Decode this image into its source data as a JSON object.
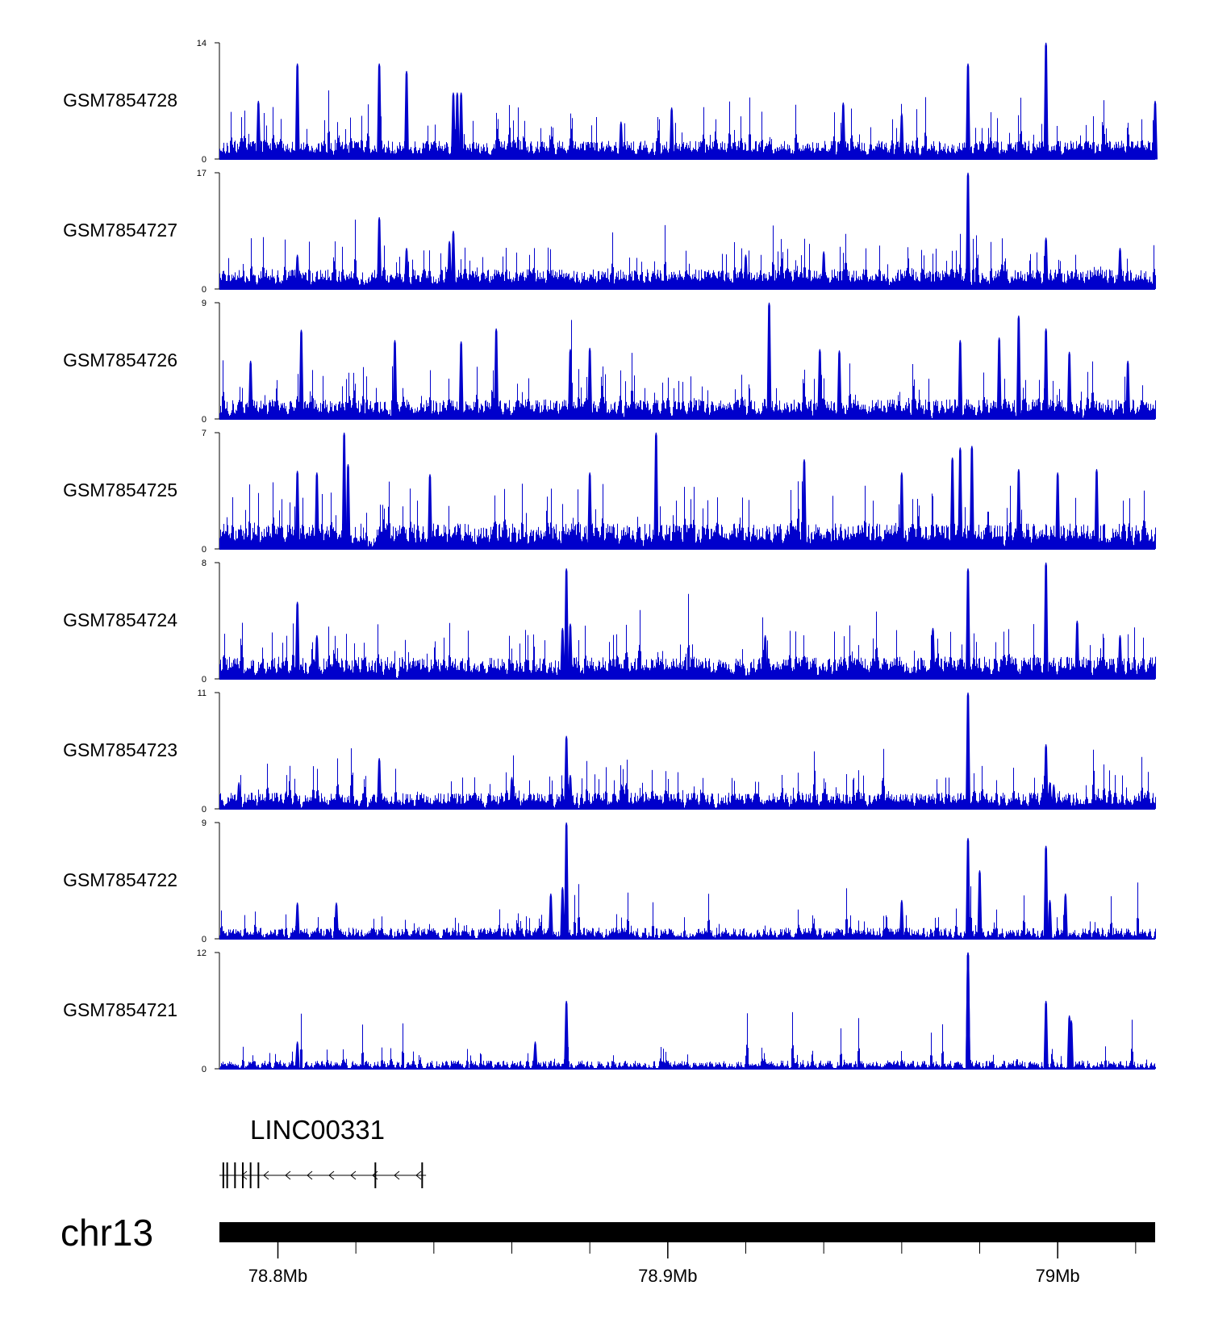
{
  "chart_data": {
    "type": "area",
    "title": "",
    "chromosome": "chr13",
    "x_range_mb": [
      78.785,
      79.025
    ],
    "x_unit": "Mb",
    "xticks": [
      {
        "value": 78.8,
        "label": "78.8Mb"
      },
      {
        "value": 78.9,
        "label": "78.9Mb"
      },
      {
        "value": 79.0,
        "label": "79Mb"
      }
    ],
    "minor_tick_step_mb": 0.02,
    "color": "#0000CC",
    "tracks": [
      {
        "name": "GSM7854728",
        "ymin": "0",
        "ymax": "14",
        "ymax_value": 14,
        "baseline": 1.3,
        "density": 1.0,
        "peaks": [
          [
            78.805,
            11.5
          ],
          [
            78.826,
            11.5
          ],
          [
            78.833,
            10.6
          ],
          [
            78.845,
            8.0
          ],
          [
            78.846,
            8.0
          ],
          [
            78.847,
            8.0
          ],
          [
            78.795,
            7.0
          ],
          [
            78.977,
            11.5
          ],
          [
            78.997,
            14.0
          ],
          [
            78.901,
            6.2
          ],
          [
            78.945,
            6.8
          ],
          [
            79.025,
            7.0
          ],
          [
            78.888,
            4.5
          ],
          [
            78.96,
            5.5
          ]
        ]
      },
      {
        "name": "GSM7854727",
        "ymin": "0",
        "ymax": "17",
        "ymax_value": 17,
        "baseline": 1.7,
        "density": 1.0,
        "peaks": [
          [
            78.826,
            10.5
          ],
          [
            78.833,
            6.0
          ],
          [
            78.845,
            8.5
          ],
          [
            78.844,
            7.0
          ],
          [
            78.977,
            17.0
          ],
          [
            78.997,
            7.5
          ],
          [
            79.016,
            6.0
          ],
          [
            78.805,
            5.0
          ],
          [
            78.94,
            5.5
          ],
          [
            78.92,
            5.0
          ]
        ]
      },
      {
        "name": "GSM7854726",
        "ymin": "0",
        "ymax": "9",
        "ymax_value": 9,
        "baseline": 0.9,
        "density": 0.9,
        "peaks": [
          [
            78.806,
            6.9
          ],
          [
            78.83,
            6.1
          ],
          [
            78.847,
            6.0
          ],
          [
            78.856,
            7.0
          ],
          [
            78.875,
            5.4
          ],
          [
            78.88,
            5.5
          ],
          [
            78.926,
            9.0
          ],
          [
            78.939,
            5.4
          ],
          [
            78.944,
            5.3
          ],
          [
            78.985,
            6.3
          ],
          [
            78.99,
            8.0
          ],
          [
            78.997,
            7.0
          ],
          [
            78.975,
            6.1
          ],
          [
            79.003,
            5.2
          ],
          [
            79.018,
            4.5
          ],
          [
            78.793,
            4.5
          ]
        ]
      },
      {
        "name": "GSM7854725",
        "ymin": "0",
        "ymax": "7",
        "ymax_value": 7,
        "baseline": 0.9,
        "density": 0.9,
        "peaks": [
          [
            78.817,
            7.0
          ],
          [
            78.805,
            4.7
          ],
          [
            78.81,
            4.6
          ],
          [
            78.818,
            5.1
          ],
          [
            78.839,
            4.5
          ],
          [
            78.88,
            4.6
          ],
          [
            78.897,
            7.0
          ],
          [
            78.935,
            5.4
          ],
          [
            78.96,
            4.6
          ],
          [
            78.975,
            6.1
          ],
          [
            78.978,
            6.2
          ],
          [
            78.973,
            5.5
          ],
          [
            78.99,
            4.8
          ],
          [
            79.0,
            4.6
          ],
          [
            79.01,
            4.8
          ]
        ]
      },
      {
        "name": "GSM7854724",
        "ymin": "0",
        "ymax": "8",
        "ymax_value": 8,
        "baseline": 0.9,
        "density": 0.9,
        "peaks": [
          [
            78.805,
            5.3
          ],
          [
            78.874,
            7.6
          ],
          [
            78.873,
            3.5
          ],
          [
            78.875,
            3.8
          ],
          [
            78.977,
            7.6
          ],
          [
            78.997,
            8.0
          ],
          [
            79.005,
            4.0
          ],
          [
            78.968,
            3.5
          ],
          [
            78.925,
            3.0
          ],
          [
            79.016,
            3.0
          ],
          [
            78.81,
            3.0
          ]
        ]
      },
      {
        "name": "GSM7854723",
        "ymin": "0",
        "ymax": "11",
        "ymax_value": 11,
        "baseline": 0.9,
        "density": 0.9,
        "peaks": [
          [
            78.826,
            4.8
          ],
          [
            78.874,
            6.9
          ],
          [
            78.875,
            3.2
          ],
          [
            78.977,
            11.0
          ],
          [
            78.997,
            6.1
          ],
          [
            78.998,
            2.5
          ],
          [
            78.999,
            2.3
          ],
          [
            78.79,
            2.5
          ],
          [
            78.86,
            3.0
          ]
        ]
      },
      {
        "name": "GSM7854722",
        "ymin": "0",
        "ymax": "9",
        "ymax_value": 9,
        "baseline": 0.5,
        "density": 0.75,
        "peaks": [
          [
            78.874,
            9.0
          ],
          [
            78.873,
            4.0
          ],
          [
            78.977,
            7.8
          ],
          [
            78.98,
            5.3
          ],
          [
            78.997,
            7.2
          ],
          [
            78.998,
            3.0
          ],
          [
            79.002,
            3.5
          ],
          [
            78.87,
            3.5
          ],
          [
            78.805,
            2.8
          ],
          [
            78.815,
            2.8
          ],
          [
            78.96,
            3.0
          ]
        ]
      },
      {
        "name": "GSM7854721",
        "ymin": "0",
        "ymax": "12",
        "ymax_value": 12,
        "baseline": 0.5,
        "density": 0.7,
        "peaks": [
          [
            78.874,
            7.0
          ],
          [
            78.977,
            12.0
          ],
          [
            78.997,
            7.0
          ],
          [
            79.003,
            5.5
          ],
          [
            79.0035,
            5.0
          ],
          [
            78.805,
            2.8
          ],
          [
            78.866,
            2.8
          ],
          [
            78.977,
            12.0
          ]
        ]
      }
    ],
    "gene": {
      "name": "LINC00331",
      "start_mb": 78.785,
      "end_mb": 78.838,
      "strand": "-",
      "exons_mb": [
        78.786,
        78.787,
        78.789,
        78.791,
        78.793,
        78.795,
        78.825,
        78.837
      ]
    }
  }
}
